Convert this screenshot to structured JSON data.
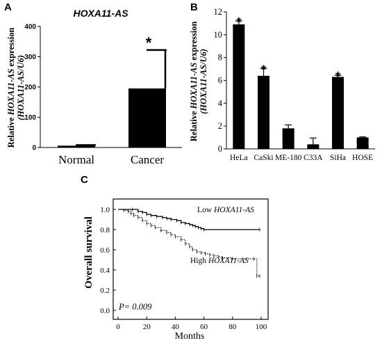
{
  "chart_data": [
    {
      "panel": "A",
      "type": "bar",
      "title": "HOXA11-AS",
      "ylabel_prefix": "Relative",
      "ylabel_gene": "HOXA11-AS",
      "ylabel_suffix": "expression",
      "ylabel_ratio": "(HOXA11-AS/U6)",
      "categories": [
        "Normal",
        "Cancer"
      ],
      "values": [
        6,
        195
      ],
      "errors": [
        2,
        127
      ],
      "significant": [
        false,
        true
      ],
      "star": "*",
      "ylim": [
        0,
        400
      ],
      "yticks": [
        0,
        100,
        200,
        300,
        400
      ]
    },
    {
      "panel": "B",
      "type": "bar",
      "ylabel_prefix": "Relative",
      "ylabel_gene": "HOXA11-AS",
      "ylabel_suffix": "expression",
      "ylabel_ratio": "(HOXA11-AS/U6)",
      "categories": [
        "HeLa",
        "CaSki",
        "ME-180",
        "C33A",
        "SiHa",
        "HOSE"
      ],
      "values": [
        10.9,
        6.4,
        1.8,
        0.4,
        6.3,
        1.0
      ],
      "errors": [
        0.3,
        0.65,
        0.3,
        0.55,
        0.15,
        0.05
      ],
      "significant": [
        true,
        true,
        false,
        false,
        true,
        false
      ],
      "star": "*",
      "ylim": [
        0,
        12
      ],
      "yticks": [
        0,
        2,
        4,
        6,
        8,
        10,
        12
      ]
    },
    {
      "panel": "C",
      "type": "line",
      "xlabel": "Months",
      "ylabel": "Overall survival",
      "xlim": [
        0,
        100
      ],
      "ylim": [
        0.0,
        1.0
      ],
      "xticks": [
        0,
        20,
        40,
        60,
        80,
        100
      ],
      "yticks": [
        "0.0",
        "0.2",
        "0.4",
        "0.6",
        "0.8",
        "1.0"
      ],
      "annotation": "P= 0.009",
      "series": [
        {
          "label_prefix": "Low",
          "label_gene": "HOXA11-AS",
          "style": "solid",
          "x": [
            0,
            10,
            14,
            17,
            20,
            23,
            27,
            31,
            34,
            37,
            41,
            44,
            47,
            50,
            52,
            54,
            56,
            58,
            60,
            99
          ],
          "y": [
            1.0,
            1.0,
            0.98,
            0.97,
            0.95,
            0.94,
            0.93,
            0.92,
            0.91,
            0.9,
            0.89,
            0.87,
            0.86,
            0.85,
            0.84,
            0.83,
            0.82,
            0.81,
            0.8,
            0.8
          ]
        },
        {
          "label_prefix": "High",
          "label_gene": "HOXA11-AS",
          "style": "dotted",
          "x": [
            0,
            4,
            7,
            9,
            11,
            14,
            17,
            20,
            23,
            26,
            30,
            34,
            37,
            40,
            44,
            47,
            50,
            52,
            55,
            58,
            61,
            64,
            67,
            70,
            73,
            80,
            95,
            97,
            99
          ],
          "y": [
            1.0,
            0.99,
            0.98,
            0.96,
            0.94,
            0.92,
            0.89,
            0.86,
            0.84,
            0.82,
            0.79,
            0.77,
            0.75,
            0.73,
            0.7,
            0.66,
            0.63,
            0.6,
            0.58,
            0.57,
            0.56,
            0.55,
            0.54,
            0.53,
            0.52,
            0.51,
            0.51,
            0.34,
            0.34
          ]
        }
      ]
    }
  ]
}
